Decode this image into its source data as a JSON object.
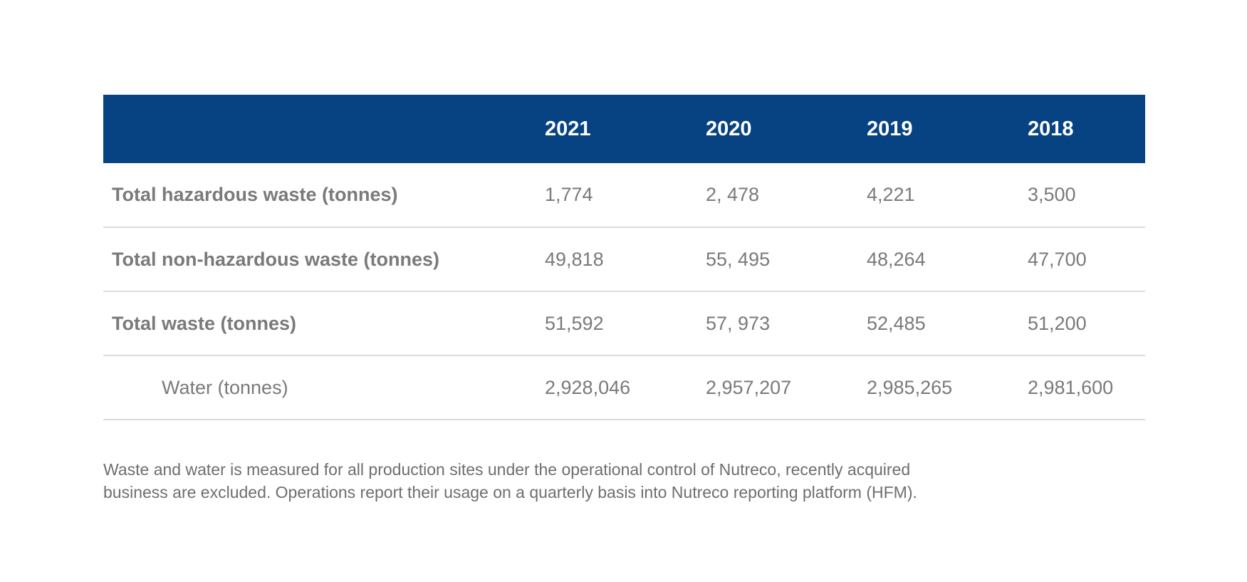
{
  "table": {
    "header": {
      "label": "",
      "years": [
        "2021",
        "2020",
        "2019",
        "2018"
      ]
    },
    "rows": [
      {
        "label": "Total hazardous waste (tonnes)",
        "values": [
          "1,774",
          "2, 478",
          "4,221",
          "3,500"
        ]
      },
      {
        "label": "Total non-hazardous waste (tonnes)",
        "values": [
          "49,818",
          "55, 495",
          "48,264",
          "47,700"
        ]
      },
      {
        "label": "Total waste (tonnes)",
        "values": [
          "51,592",
          "57, 973",
          "52,485",
          "51,200"
        ]
      },
      {
        "label": "Water (tonnes)",
        "values": [
          "2,928,046",
          "2,957,207",
          "2,985,265",
          "2,981,600"
        ]
      }
    ]
  },
  "footnote": {
    "line1": "Waste and water is measured for all production sites under the operational control of Nutreco, recently acquired",
    "line2": "business are excluded. Operations report their usage on a quarterly basis into Nutreco reporting platform (HFM)."
  },
  "colors": {
    "header_background": "#074382",
    "header_text": "#ffffff",
    "body_text": "#7a7a7a",
    "row_divider": "#dcdcdc"
  }
}
